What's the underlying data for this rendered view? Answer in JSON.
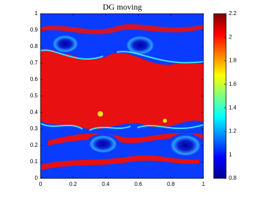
{
  "chart_data": {
    "type": "heatmap",
    "title": "DG moving",
    "xlim": [
      0,
      1
    ],
    "xticks": [
      0,
      0.2,
      0.4,
      0.6,
      0.8,
      1
    ],
    "ylim": [
      0,
      1
    ],
    "yticks": [
      0,
      0.1,
      0.2,
      0.3,
      0.4,
      0.5,
      0.6,
      0.7,
      0.8,
      0.9,
      1
    ],
    "colorbar": {
      "lim": [
        0.8,
        2.2
      ],
      "ticks": [
        0.8,
        1,
        1.2,
        1.4,
        1.6,
        1.8,
        2,
        2.2
      ],
      "colormap": "jet"
    }
  }
}
